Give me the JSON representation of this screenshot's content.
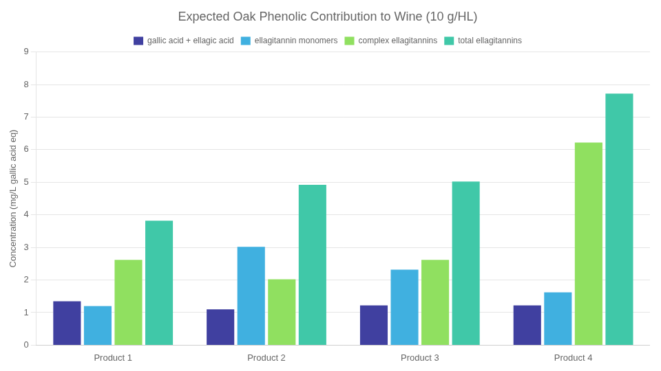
{
  "chart_data": {
    "type": "bar",
    "title": "Expected Oak Phenolic Contribution to Wine (10 g/HL)",
    "ylabel": "Concentration (mg/L gallic acid eq)",
    "categories": [
      "Product 1",
      "Product 2",
      "Product 3",
      "Product 4"
    ],
    "series": [
      {
        "name": "gallic acid + ellagic acid",
        "color": "#4040a0",
        "values": [
          1.35,
          1.1,
          1.22,
          1.22
        ]
      },
      {
        "name": "ellagitannin monomers",
        "color": "#40b0e0",
        "values": [
          1.2,
          3.02,
          2.32,
          1.62
        ]
      },
      {
        "name": "complex ellagitannins",
        "color": "#90e060",
        "values": [
          2.62,
          2.02,
          2.62,
          6.22
        ]
      },
      {
        "name": "total ellagitannins",
        "color": "#40c8a8",
        "values": [
          3.82,
          4.92,
          5.02,
          7.72
        ]
      }
    ],
    "ylim": [
      0,
      9
    ],
    "yticks": [
      0,
      1,
      2,
      3,
      4,
      5,
      6,
      7,
      8,
      9
    ],
    "grid": true,
    "legend": "top"
  }
}
